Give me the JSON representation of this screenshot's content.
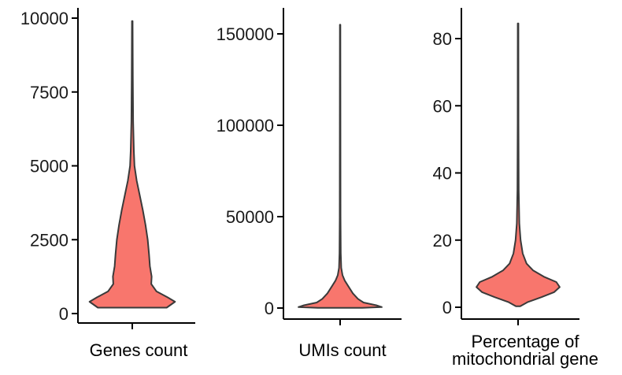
{
  "colors": {
    "violin_fill": "#F8766D",
    "violin_stroke": "#3a3a3a",
    "axis": "#000000"
  },
  "chart_data": [
    {
      "type": "violin",
      "xlabel": [
        "Genes count"
      ],
      "ylim": [
        0,
        10000
      ],
      "yticks": [
        0,
        2500,
        5000,
        7500,
        10000
      ],
      "ytick_labels": [
        "0",
        "2500",
        "5000",
        "7500",
        "10000"
      ],
      "density": [
        {
          "y": 200,
          "w": 0.78
        },
        {
          "y": 400,
          "w": 0.97
        },
        {
          "y": 550,
          "w": 0.8
        },
        {
          "y": 750,
          "w": 0.55
        },
        {
          "y": 1000,
          "w": 0.43
        },
        {
          "y": 1250,
          "w": 0.44
        },
        {
          "y": 1600,
          "w": 0.4
        },
        {
          "y": 2000,
          "w": 0.38
        },
        {
          "y": 2500,
          "w": 0.35
        },
        {
          "y": 3000,
          "w": 0.3
        },
        {
          "y": 3500,
          "w": 0.24
        },
        {
          "y": 4000,
          "w": 0.17
        },
        {
          "y": 4500,
          "w": 0.1
        },
        {
          "y": 5000,
          "w": 0.05
        },
        {
          "y": 5500,
          "w": 0.035
        },
        {
          "y": 6500,
          "w": 0.02
        },
        {
          "y": 8000,
          "w": 0.012
        },
        {
          "y": 9900,
          "w": 0.008
        }
      ]
    },
    {
      "type": "violin",
      "xlabel": [
        "UMIs count"
      ],
      "ylim": [
        0,
        150000
      ],
      "yticks": [
        0,
        50000,
        100000,
        150000
      ],
      "ytick_labels": [
        "0",
        "50000",
        "100000",
        "150000"
      ],
      "density": [
        {
          "y": 100,
          "w": 0.52
        },
        {
          "y": 500,
          "w": 0.98
        },
        {
          "y": 1500,
          "w": 0.85
        },
        {
          "y": 3000,
          "w": 0.55
        },
        {
          "y": 5000,
          "w": 0.42
        },
        {
          "y": 8000,
          "w": 0.3
        },
        {
          "y": 12000,
          "w": 0.19
        },
        {
          "y": 15000,
          "w": 0.11
        },
        {
          "y": 18000,
          "w": 0.055
        },
        {
          "y": 22000,
          "w": 0.025
        },
        {
          "y": 30000,
          "w": 0.014
        },
        {
          "y": 50000,
          "w": 0.01
        },
        {
          "y": 100000,
          "w": 0.008
        },
        {
          "y": 155000,
          "w": 0.006
        }
      ]
    },
    {
      "type": "violin",
      "xlabel": [
        "Percentage of",
        "mitochondrial gene"
      ],
      "ylim": [
        0,
        85
      ],
      "yticks": [
        0,
        20,
        40,
        60,
        80
      ],
      "ytick_labels": [
        "0",
        "20",
        "40",
        "60",
        "80"
      ],
      "density": [
        {
          "y": 0.3,
          "w": 0.05
        },
        {
          "y": 1.5,
          "w": 0.22
        },
        {
          "y": 3,
          "w": 0.55
        },
        {
          "y": 4.5,
          "w": 0.85
        },
        {
          "y": 6,
          "w": 0.98
        },
        {
          "y": 7.5,
          "w": 0.9
        },
        {
          "y": 9,
          "w": 0.62
        },
        {
          "y": 11,
          "w": 0.35
        },
        {
          "y": 13,
          "w": 0.2
        },
        {
          "y": 16,
          "w": 0.11
        },
        {
          "y": 20,
          "w": 0.06
        },
        {
          "y": 25,
          "w": 0.03
        },
        {
          "y": 35,
          "w": 0.015
        },
        {
          "y": 55,
          "w": 0.01
        },
        {
          "y": 84.5,
          "w": 0.007
        }
      ]
    }
  ]
}
